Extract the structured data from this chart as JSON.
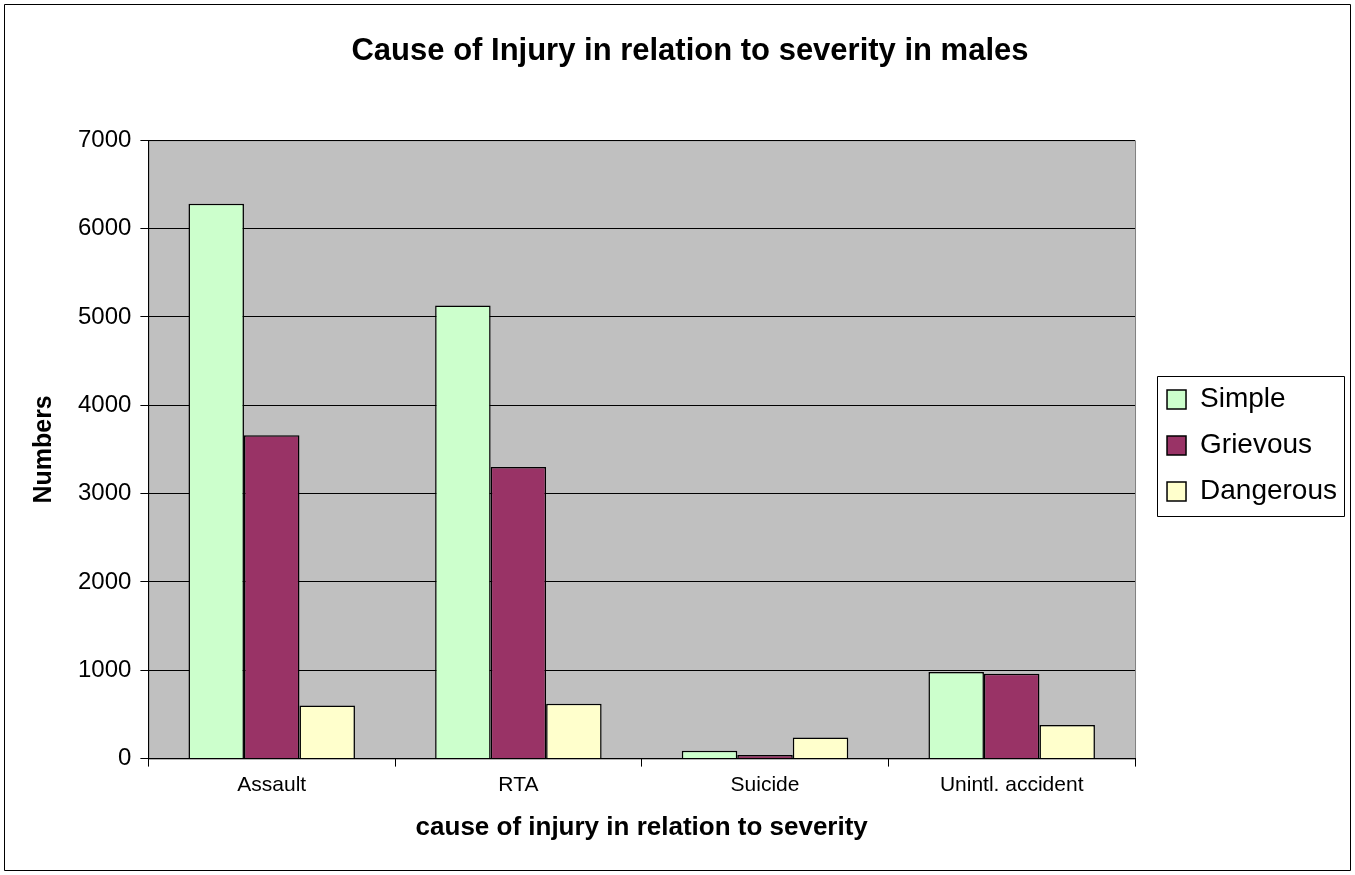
{
  "chart_data": {
    "type": "bar",
    "title": "Cause of Injury in relation to severity in males",
    "xlabel": "cause of injury in relation to severity",
    "ylabel": "Numbers",
    "categories": [
      "Assault",
      "RTA",
      "Suicide",
      "Unintl. accident"
    ],
    "series": [
      {
        "name": "Simple",
        "color": "#ccffcc",
        "values": [
          6280,
          5130,
          90,
          980
        ]
      },
      {
        "name": "Grievous",
        "color": "#993366",
        "values": [
          3660,
          3300,
          40,
          960
        ]
      },
      {
        "name": "Dangerous",
        "color": "#ffffcc",
        "values": [
          600,
          620,
          240,
          380
        ]
      }
    ],
    "ylim": [
      0,
      7000
    ],
    "yticks": [
      0,
      1000,
      2000,
      3000,
      4000,
      5000,
      6000,
      7000
    ],
    "grid": "y",
    "legend": "right"
  }
}
